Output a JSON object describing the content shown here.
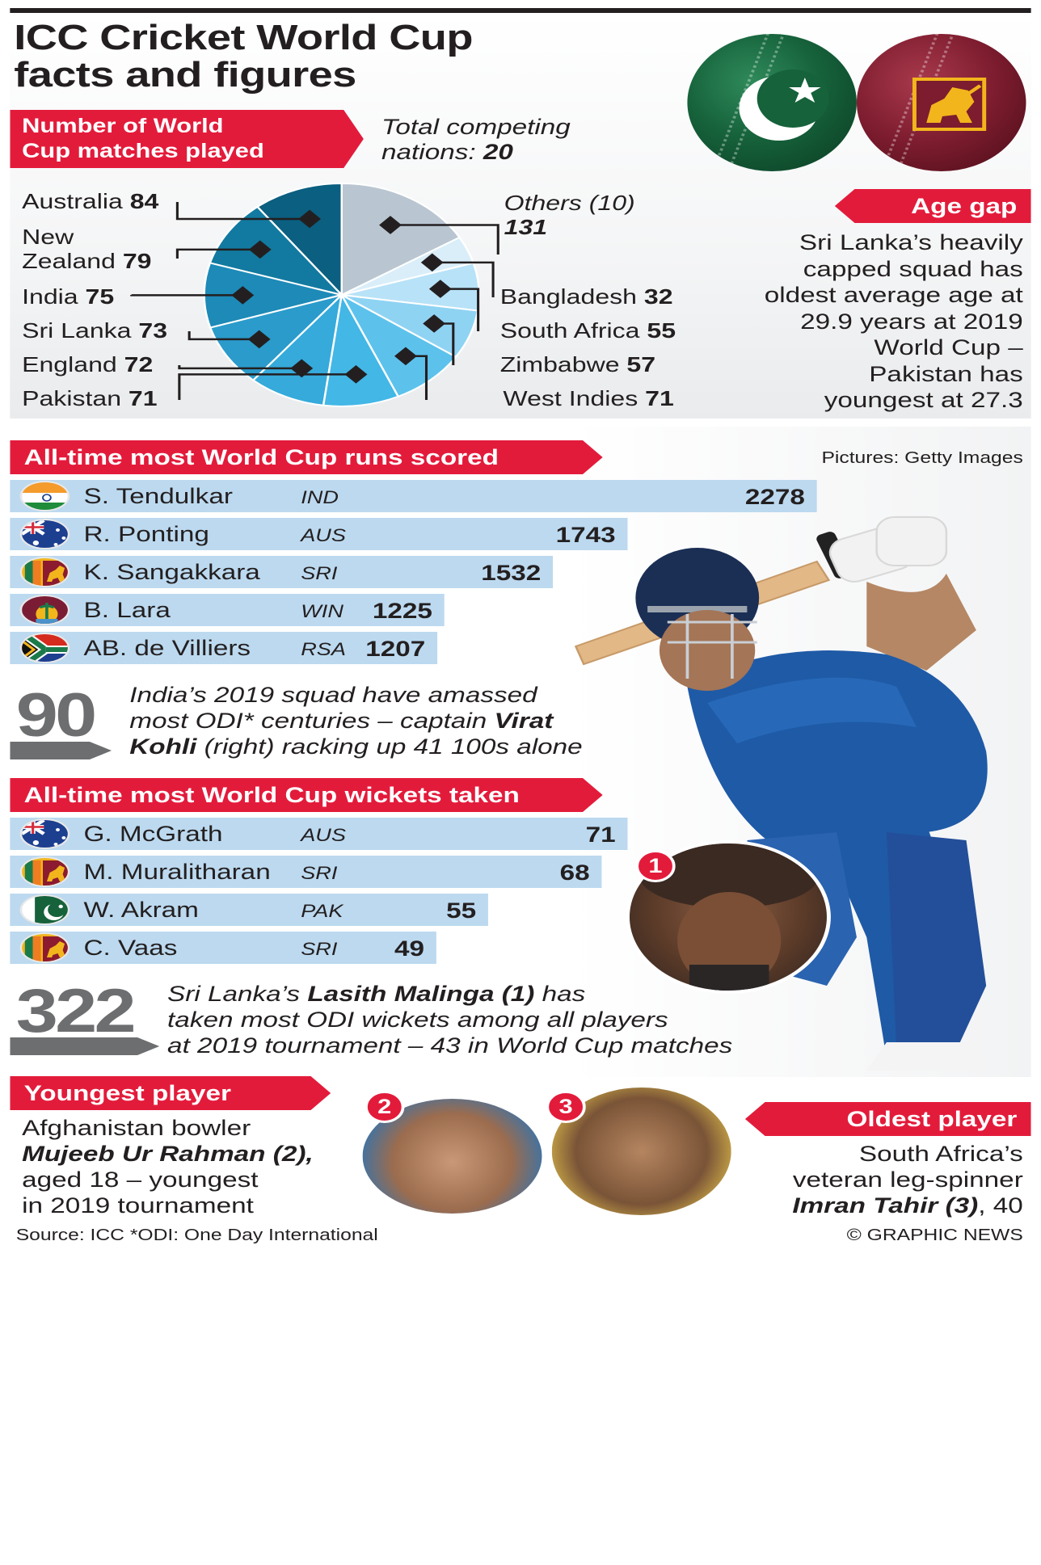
{
  "title_line1": "ICC Cricket World Cup",
  "title_line2": "facts and figures",
  "matches_section": {
    "ribbon_line1": "Number of World",
    "ribbon_line2": "Cup matches played",
    "nations_line1": "Total competing",
    "nations_prefix": "nations: ",
    "nations_count": "20"
  },
  "chart_data": [
    {
      "type": "pie",
      "title": "Number of World Cup matches played",
      "categories": [
        "Australia",
        "New Zealand",
        "India",
        "Sri Lanka",
        "England",
        "Pakistan",
        "West Indies",
        "Zimbabwe",
        "South Africa",
        "Bangladesh",
        "Others (10)"
      ],
      "values": [
        84,
        79,
        75,
        73,
        72,
        71,
        71,
        57,
        55,
        32,
        131
      ],
      "colors": [
        "#0b5f80",
        "#127aa0",
        "#1d8ab8",
        "#2a9bcb",
        "#35aadb",
        "#43b7e6",
        "#5cc2ec",
        "#8fd3f3",
        "#b8e2f7",
        "#d9eef9",
        "#b9c6d1"
      ]
    },
    {
      "type": "bar",
      "title": "All-time most World Cup runs scored",
      "categories": [
        "S. Tendulkar",
        "R. Ponting",
        "K. Sangakkara",
        "B. Lara",
        "AB. de Villiers"
      ],
      "teams": [
        "IND",
        "AUS",
        "SRI",
        "WIN",
        "RSA"
      ],
      "values": [
        2278,
        1743,
        1532,
        1225,
        1207
      ]
    },
    {
      "type": "bar",
      "title": "All-time most World Cup wickets taken",
      "categories": [
        "G. McGrath",
        "M. Muralitharan",
        "W. Akram",
        "C. Vaas"
      ],
      "teams": [
        "AUS",
        "SRI",
        "PAK",
        "SRI"
      ],
      "values": [
        71,
        68,
        55,
        49
      ]
    }
  ],
  "pie_labels": [
    {
      "name": "Australia ",
      "value": "84"
    },
    {
      "name": "New",
      "name2": "Zealand ",
      "value": "79"
    },
    {
      "name": "India ",
      "value": "75"
    },
    {
      "name": "Sri Lanka ",
      "value": "73"
    },
    {
      "name": "England ",
      "value": "72"
    },
    {
      "name": "Pakistan ",
      "value": "71"
    },
    {
      "name": "West Indies ",
      "value": "71"
    },
    {
      "name": "Zimbabwe ",
      "value": "57"
    },
    {
      "name": "South Africa ",
      "value": "55"
    },
    {
      "name": "Bangladesh ",
      "value": "32"
    },
    {
      "name": "Others (10)",
      "value": "131"
    }
  ],
  "age_gap": {
    "ribbon": "Age gap",
    "text": "Sri Lanka’s heavily capped squad has oldest average age at 29.9 years at 2019 World Cup – Pakistan has youngest at 27.3"
  },
  "runs_section": {
    "ribbon": "All-time most World Cup runs scored",
    "credit": "Pictures: Getty Images",
    "rows": [
      {
        "name": "S. Tendulkar",
        "team": "IND",
        "value": "2278",
        "flag": "india-flag-icon"
      },
      {
        "name": "R. Ponting",
        "team": "AUS",
        "value": "1743",
        "flag": "australia-flag-icon"
      },
      {
        "name": "K. Sangakkara",
        "team": "SRI",
        "value": "1532",
        "flag": "sri-lanka-flag-icon"
      },
      {
        "name": "B. Lara",
        "team": "WIN",
        "value": "1225",
        "flag": "west-indies-flag-icon"
      },
      {
        "name": "AB. de Villiers",
        "team": "RSA",
        "value": "1207",
        "flag": "south-africa-flag-icon"
      }
    ]
  },
  "centuries": {
    "number": "90",
    "line1": "India’s 2019 squad have amassed",
    "line2a": "most ODI* centuries – captain ",
    "line2b": "Virat",
    "line3a": "Kohli",
    "line3b": " (right) racking up 41 100s alone"
  },
  "wickets_section": {
    "ribbon": "All-time most World Cup wickets taken",
    "rows": [
      {
        "name": "G. McGrath",
        "team": "AUS",
        "value": "71",
        "flag": "australia-flag-icon"
      },
      {
        "name": "M. Muralitharan",
        "team": "SRI",
        "value": "68",
        "flag": "sri-lanka-flag-icon"
      },
      {
        "name": "W. Akram",
        "team": "PAK",
        "value": "55",
        "flag": "pakistan-flag-icon"
      },
      {
        "name": "C. Vaas",
        "team": "SRI",
        "value": "49",
        "flag": "sri-lanka-flag-icon"
      }
    ]
  },
  "malinga": {
    "number": "322",
    "line1a": "Sri Lanka’s ",
    "line1b": "Lasith Malinga (1)",
    "line1c": " has",
    "line2": "taken most ODI wickets among all players",
    "line3": "at 2019 tournament – 43 in World Cup matches"
  },
  "youngest": {
    "ribbon": "Youngest player",
    "line1": "Afghanistan bowler",
    "line2": "Mujeeb Ur Rahman (2),",
    "line3": "aged 18 – youngest",
    "line4": "in 2019 tournament"
  },
  "oldest": {
    "ribbon": "Oldest player",
    "line1": "South Africa’s",
    "line2": "veteran leg-spinner",
    "line3a": "Imran Tahir (3)",
    "line3b": ", 40"
  },
  "badges": [
    "1",
    "2",
    "3"
  ],
  "footer": {
    "source": "Source: ICC *ODI: One Day International",
    "copyright": "© GRAPHIC NEWS"
  },
  "colors": {
    "ribbon_red": "#e31b3b",
    "bar_blue": "#bcd9ef",
    "big_number_grey": "#6d6e70"
  }
}
